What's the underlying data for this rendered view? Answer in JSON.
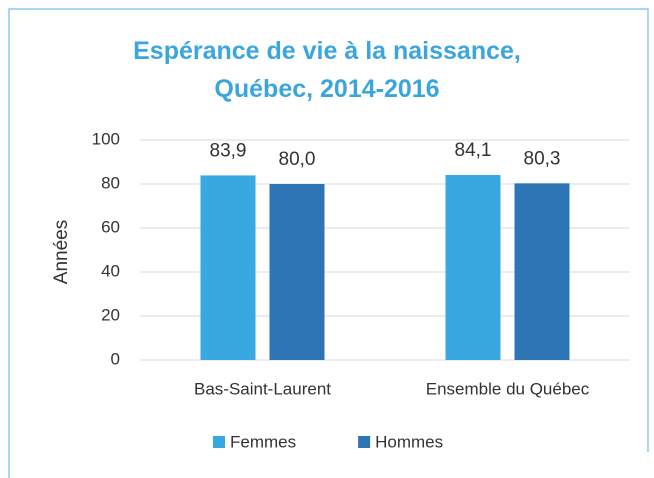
{
  "chart_data": {
    "type": "bar",
    "title": "Espérance de vie à la naissance, Québec, 2014-2016",
    "y_label": "Années",
    "categories": [
      "Bas-Saint-Laurent",
      "Ensemble du Québec"
    ],
    "series": [
      {
        "name": "Femmes",
        "color": "#38a9e0",
        "values": [
          83.9,
          84.1
        ],
        "value_labels": [
          "83,9",
          "84,1"
        ]
      },
      {
        "name": "Hommes",
        "color": "#2e75b6",
        "values": [
          80.0,
          80.3
        ],
        "value_labels": [
          "80,0",
          "80,3"
        ]
      }
    ],
    "ylim": [
      0,
      100
    ],
    "yticks": [
      0,
      20,
      40,
      60,
      80,
      100
    ],
    "grid": true,
    "legend": "bottom"
  }
}
